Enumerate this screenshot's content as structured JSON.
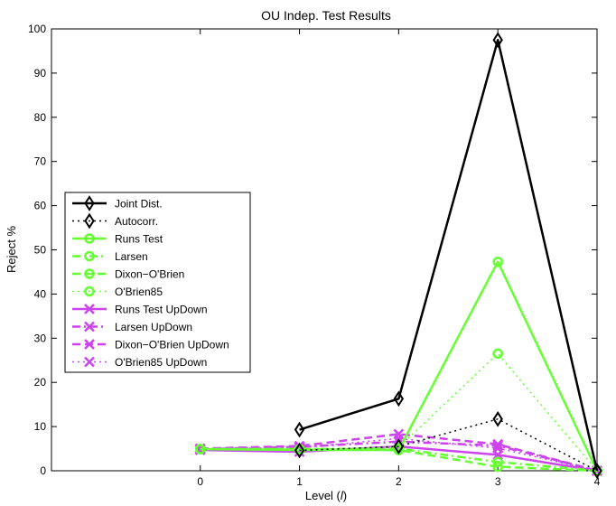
{
  "chart_data": {
    "type": "line",
    "title": "OU Indep. Test Results",
    "xlabel_prefix": "Level (",
    "xlabel_var": "l",
    "xlabel_suffix": ")",
    "ylabel": "Reject %",
    "xlim": [
      -1.5,
      4
    ],
    "ylim": [
      0,
      100
    ],
    "xticks": [
      "0",
      "1",
      "2",
      "3",
      "4"
    ],
    "yticks": [
      "0",
      "10",
      "20",
      "30",
      "40",
      "50",
      "60",
      "70",
      "80",
      "90",
      "100"
    ],
    "grid": false,
    "legend_position": "center-left",
    "series": [
      {
        "name": "Joint Dist.",
        "color": "#000000",
        "dash": "solid",
        "marker": "diamond",
        "x": [
          1,
          2,
          3,
          4
        ],
        "y": [
          9.3,
          16.3,
          97.5,
          0
        ]
      },
      {
        "name": "Autocorr.",
        "color": "#000000",
        "dash": "dotted",
        "marker": "diamond",
        "x": [
          1,
          2,
          3,
          4
        ],
        "y": [
          4.6,
          5.5,
          11.7,
          0
        ]
      },
      {
        "name": "Runs Test",
        "color": "#66ff33",
        "dash": "solid",
        "marker": "circle",
        "x": [
          0,
          1,
          2,
          3,
          4
        ],
        "y": [
          4.9,
          4.7,
          4.7,
          47.3,
          0
        ]
      },
      {
        "name": "Larsen",
        "color": "#66ff33",
        "dash": "dashdot",
        "marker": "circle",
        "x": [
          0,
          1,
          2,
          3,
          4
        ],
        "y": [
          4.9,
          4.9,
          5.0,
          2.0,
          0
        ]
      },
      {
        "name": "Dixon−O'Brien",
        "color": "#66ff33",
        "dash": "dashed",
        "marker": "circle",
        "x": [
          0,
          1,
          2,
          3,
          4
        ],
        "y": [
          4.9,
          4.9,
          4.7,
          0.9,
          0
        ]
      },
      {
        "name": "O'Brien85",
        "color": "#66ff33",
        "dash": "dotted",
        "marker": "circle",
        "x": [
          0,
          1,
          2,
          3,
          4
        ],
        "y": [
          4.9,
          4.7,
          5.3,
          26.5,
          0
        ]
      },
      {
        "name": "Runs Test UpDown",
        "color": "#cc44ee",
        "dash": "solid",
        "marker": "x",
        "x": [
          0,
          1,
          2,
          3,
          4
        ],
        "y": [
          4.7,
          4.3,
          5.5,
          3.6,
          0
        ]
      },
      {
        "name": "Larsen UpDown",
        "color": "#cc44ee",
        "dash": "dashdot",
        "marker": "x",
        "x": [
          0,
          1,
          2,
          3,
          4
        ],
        "y": [
          4.9,
          5.4,
          6.6,
          5.7,
          0
        ]
      },
      {
        "name": "Dixon−O'Brien UpDown",
        "color": "#cc44ee",
        "dash": "dashed",
        "marker": "x",
        "x": [
          0,
          1,
          2,
          3,
          4
        ],
        "y": [
          5.0,
          5.6,
          8.3,
          6.0,
          0
        ]
      },
      {
        "name": "O'Brien85 UpDown",
        "color": "#cc44ee",
        "dash": "dotted",
        "marker": "x",
        "x": [
          0,
          1,
          2,
          3,
          4
        ],
        "y": [
          5.0,
          5.2,
          7.3,
          5.1,
          0
        ]
      }
    ]
  }
}
